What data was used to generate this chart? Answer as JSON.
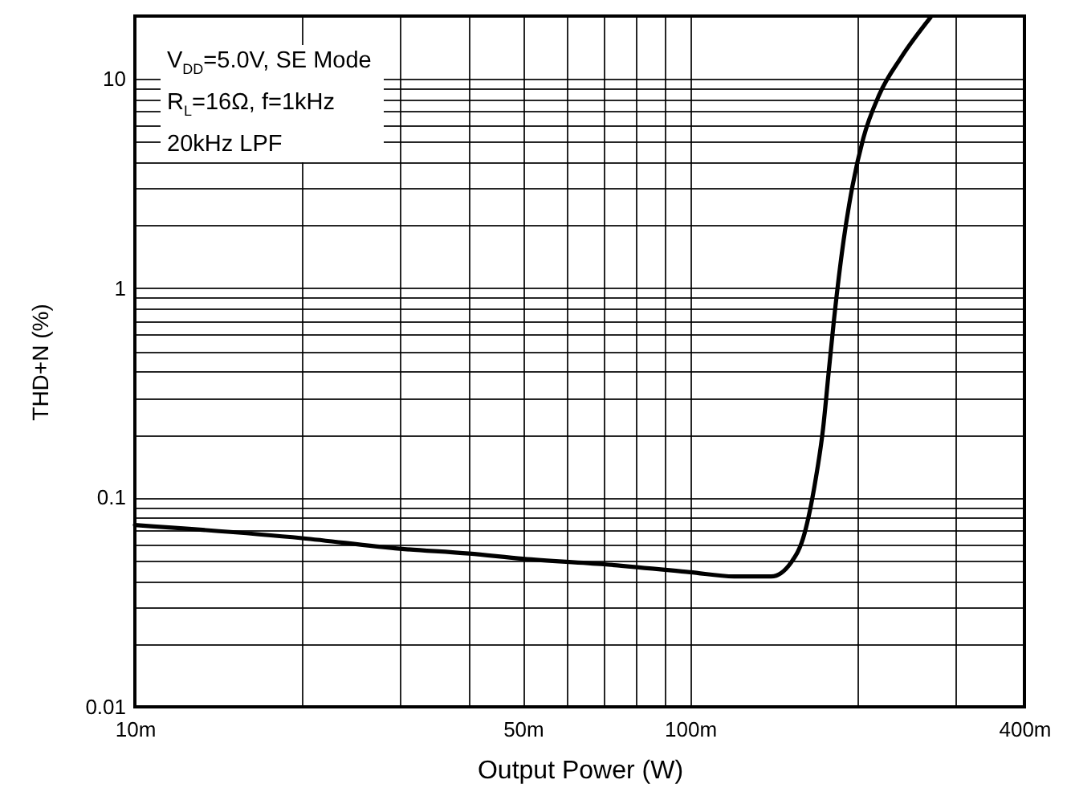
{
  "chart_data": {
    "type": "line",
    "xlabel": "Output Power (W)",
    "ylabel": "THD+N (%)",
    "annotations": [
      "V$_{DD}$=5.0V, SE Mode",
      "R$_{L}$=16Ω, f=1kHz",
      "20kHz LPF"
    ],
    "log": "xy",
    "grid": true,
    "line_style": "solid",
    "marker": "none",
    "xlim": [
      10,
      400
    ],
    "ylim": [
      0.01,
      20
    ],
    "xticks": [
      {
        "value": 10,
        "label": "10m"
      },
      {
        "value": 20,
        "label": null
      },
      {
        "value": 30,
        "label": null
      },
      {
        "value": 40,
        "label": null
      },
      {
        "value": 50,
        "label": "50m"
      },
      {
        "value": 60,
        "label": null
      },
      {
        "value": 70,
        "label": null
      },
      {
        "value": 80,
        "label": null
      },
      {
        "value": 90,
        "label": null
      },
      {
        "value": 100,
        "label": "100m"
      },
      {
        "value": 200,
        "label": null
      },
      {
        "value": 300,
        "label": null
      },
      {
        "value": 400,
        "label": "400m"
      }
    ],
    "yticks": [
      0.01,
      {
        "value": 0.02,
        "label": null
      },
      {
        "value": 0.03,
        "label": null
      },
      {
        "value": 0.04,
        "label": null
      },
      {
        "value": 0.05,
        "label": null
      },
      {
        "value": 0.06,
        "label": null
      },
      {
        "value": 0.07,
        "label": null
      },
      {
        "value": 0.08,
        "label": null
      },
      {
        "value": 0.09,
        "label": null
      },
      0.1,
      {
        "value": 0.2,
        "label": null
      },
      {
        "value": 0.3,
        "label": null
      },
      {
        "value": 0.4,
        "label": null
      },
      {
        "value": 0.5,
        "label": null
      },
      {
        "value": 0.6,
        "label": null
      },
      {
        "value": 0.7,
        "label": null
      },
      {
        "value": 0.8,
        "label": null
      },
      {
        "value": 0.9,
        "label": null
      },
      1,
      {
        "value": 2,
        "label": null
      },
      {
        "value": 3,
        "label": null
      },
      {
        "value": 4,
        "label": null
      },
      {
        "value": 5,
        "label": null
      },
      {
        "value": 6,
        "label": null
      },
      {
        "value": 7,
        "label": null
      },
      {
        "value": 8,
        "label": null
      },
      {
        "value": 9,
        "label": null
      },
      10,
      {
        "value": 20,
        "label": null
      }
    ],
    "x": [
      10,
      20,
      30,
      40,
      50,
      70,
      100,
      120,
      140,
      152,
      160.6,
      168,
      173.6,
      177.5,
      181.5,
      189,
      196,
      205,
      219,
      240,
      271
    ],
    "series": [
      {
        "color": "#000000",
        "values": [
          0.074,
          0.064,
          0.057,
          0.054,
          0.051,
          0.048,
          0.044,
          0.042,
          0.042,
          0.049,
          0.067,
          0.119,
          0.215,
          0.39,
          0.7,
          1.7,
          3.07,
          5.2,
          8.4,
          12.7,
          19.7
        ]
      }
    ]
  }
}
